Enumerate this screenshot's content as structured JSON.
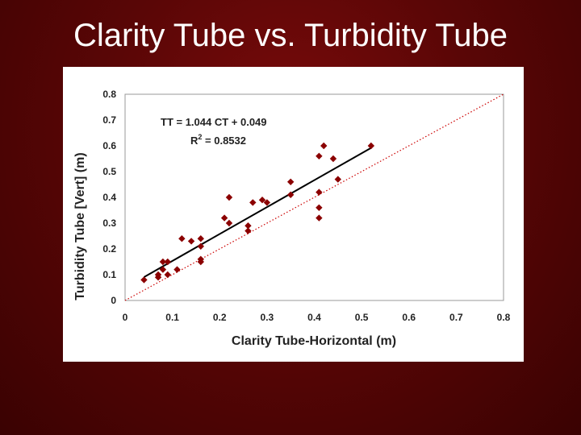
{
  "slide": {
    "title": "Clarity Tube vs. Turbidity Tube"
  },
  "chart_data": {
    "type": "scatter",
    "xlabel": "Clarity Tube-Horizontal (m)",
    "ylabel": "Turbidity Tube [Vert] (m)",
    "xlim": [
      0,
      0.8
    ],
    "ylim": [
      0,
      0.8
    ],
    "xticks": [
      "0",
      "0.1",
      "0.2",
      "0.3",
      "0.4",
      "0.5",
      "0.6",
      "0.7",
      "0.8"
    ],
    "yticks": [
      "0",
      "0.1",
      "0.2",
      "0.3",
      "0.4",
      "0.5",
      "0.6",
      "0.7",
      "0.8"
    ],
    "grid": false,
    "annotations": {
      "equation": "TT = 1.044 CT + 0.049",
      "r2_prefix": "R",
      "r2_sup": "2",
      "r2_value": " = 0.8532"
    },
    "trendline": {
      "slope": 1.044,
      "intercept": 0.049,
      "x_range": [
        0.04,
        0.52
      ],
      "color": "#000000"
    },
    "reference_line": {
      "slope": 1,
      "intercept": 0,
      "style": "dotted",
      "color": "#cc0000"
    },
    "marker_color": "#8b0000",
    "series": [
      {
        "points": [
          [
            0.04,
            0.08
          ],
          [
            0.07,
            0.1
          ],
          [
            0.07,
            0.09
          ],
          [
            0.08,
            0.12
          ],
          [
            0.08,
            0.15
          ],
          [
            0.09,
            0.15
          ],
          [
            0.09,
            0.1
          ],
          [
            0.11,
            0.12
          ],
          [
            0.12,
            0.24
          ],
          [
            0.14,
            0.23
          ],
          [
            0.16,
            0.24
          ],
          [
            0.16,
            0.21
          ],
          [
            0.16,
            0.16
          ],
          [
            0.16,
            0.15
          ],
          [
            0.21,
            0.32
          ],
          [
            0.22,
            0.3
          ],
          [
            0.22,
            0.4
          ],
          [
            0.26,
            0.29
          ],
          [
            0.26,
            0.27
          ],
          [
            0.27,
            0.38
          ],
          [
            0.29,
            0.39
          ],
          [
            0.3,
            0.38
          ],
          [
            0.35,
            0.41
          ],
          [
            0.35,
            0.46
          ],
          [
            0.41,
            0.56
          ],
          [
            0.41,
            0.42
          ],
          [
            0.41,
            0.36
          ],
          [
            0.41,
            0.32
          ],
          [
            0.42,
            0.6
          ],
          [
            0.44,
            0.55
          ],
          [
            0.45,
            0.47
          ],
          [
            0.52,
            0.6
          ]
        ]
      }
    ]
  }
}
